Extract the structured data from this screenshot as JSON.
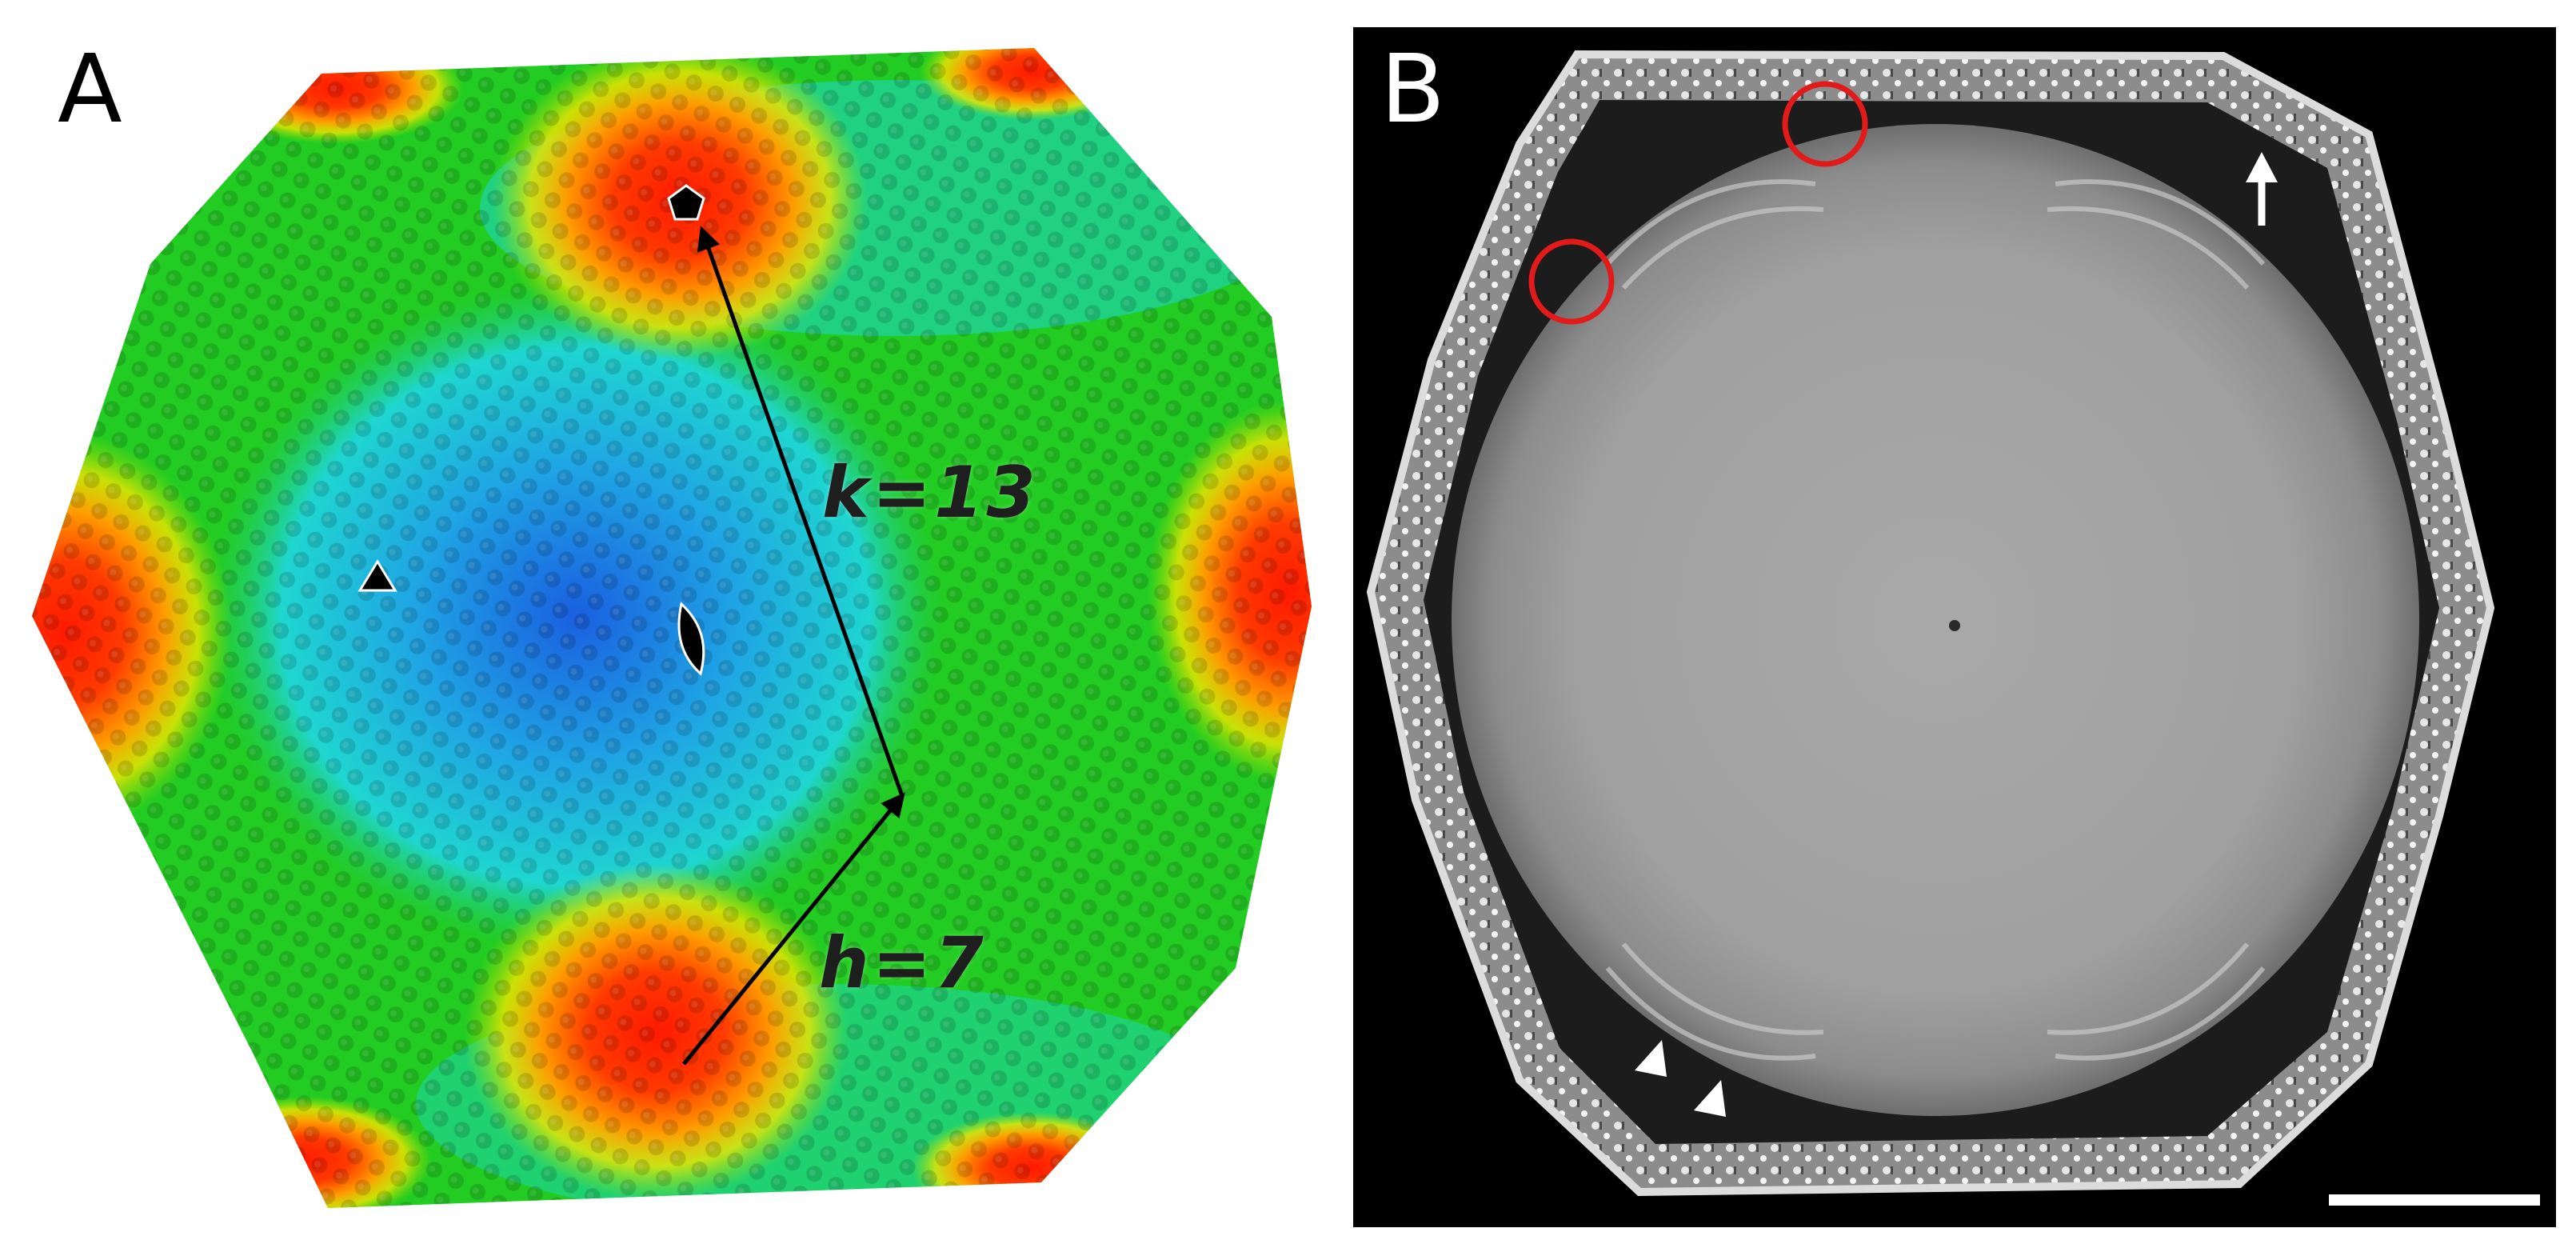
{
  "panel_a": {
    "letter": "A",
    "k_label": "k=13",
    "h_label": "h=7"
  },
  "panel_b": {
    "letter": "B"
  },
  "colors": {
    "capsid_red": "#ff1a00",
    "capsid_yellow": "#f2e600",
    "capsid_green": "#22cc22",
    "capsid_cyan": "#1fd6d0",
    "capsid_blue": "#1a5fe0",
    "micrograph_background": "#000000",
    "micrograph_interior": "#a4a4a4",
    "highlight_circle": "#e21a1a",
    "marker_white": "#ffffff"
  },
  "icons": [
    "pentagon-icon",
    "triangle-icon",
    "ellipse-icon",
    "arrowhead-icon",
    "arrow-icon",
    "scale-bar"
  ]
}
